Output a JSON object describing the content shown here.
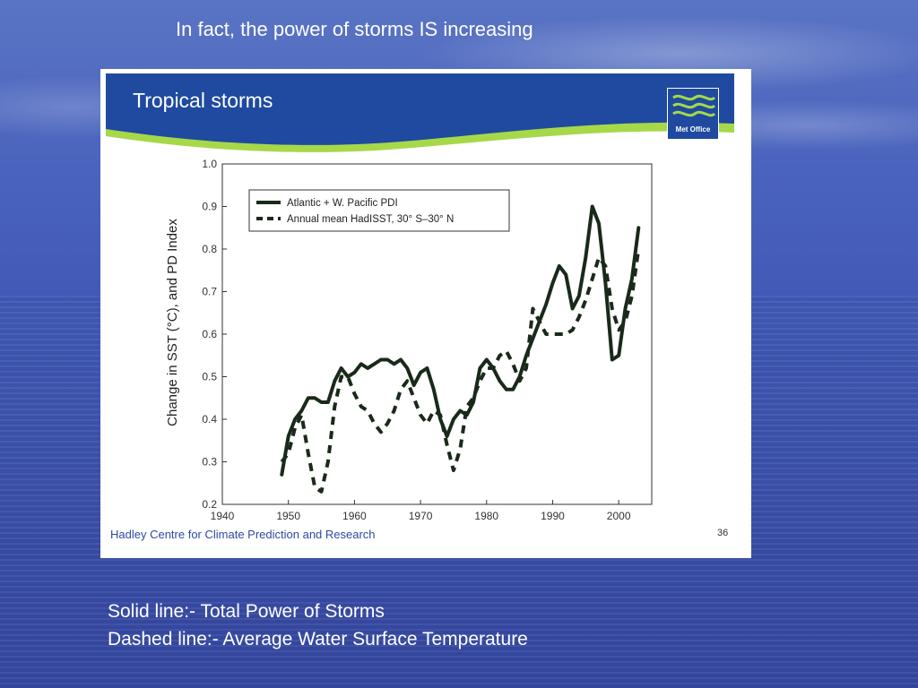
{
  "slide": {
    "title": "In fact, the power of storms IS increasing",
    "captions": [
      "Solid line:- Total Power of Storms",
      "Dashed line:- Average Water Surface Temperature"
    ],
    "background_color": "#4a63bd"
  },
  "figure": {
    "banner_title": "Tropical storms",
    "logo_text": "Met Office",
    "footer": "Hadley Centre for Climate Prediction and Research",
    "page_number": "36",
    "banner_color": "#1f4aa0",
    "accent_color": "#a6d84a"
  },
  "chart_data": {
    "type": "line",
    "title": "Tropical storms",
    "xlabel": "",
    "ylabel": "Change in SST (°C), and PD Index",
    "xlim": [
      1940,
      2005
    ],
    "ylim": [
      0.2,
      1.0
    ],
    "x_ticks": [
      1940,
      1950,
      1960,
      1970,
      1980,
      1990,
      2000
    ],
    "y_ticks": [
      "0.2",
      "0.3",
      "0.4",
      "0.5",
      "0.6",
      "0.7",
      "0.8",
      "0.9",
      "1.0"
    ],
    "grid": false,
    "legend": "top-left",
    "series": [
      {
        "name": "Atlantic + W. Pacific PDI",
        "style": "solid",
        "x": [
          1949,
          1950,
          1951,
          1952,
          1953,
          1954,
          1955,
          1956,
          1957,
          1958,
          1959,
          1960,
          1961,
          1962,
          1963,
          1964,
          1965,
          1966,
          1967,
          1968,
          1969,
          1970,
          1971,
          1972,
          1973,
          1974,
          1975,
          1976,
          1977,
          1978,
          1979,
          1980,
          1981,
          1982,
          1983,
          1984,
          1985,
          1986,
          1987,
          1988,
          1989,
          1990,
          1991,
          1992,
          1993,
          1994,
          1995,
          1996,
          1997,
          1998,
          1999,
          2000,
          2001,
          2002,
          2003
        ],
        "values": [
          0.27,
          0.36,
          0.4,
          0.42,
          0.45,
          0.45,
          0.44,
          0.44,
          0.49,
          0.52,
          0.5,
          0.51,
          0.53,
          0.52,
          0.53,
          0.54,
          0.54,
          0.53,
          0.54,
          0.52,
          0.48,
          0.51,
          0.52,
          0.47,
          0.4,
          0.36,
          0.4,
          0.42,
          0.41,
          0.44,
          0.52,
          0.54,
          0.52,
          0.49,
          0.47,
          0.47,
          0.5,
          0.55,
          0.59,
          0.63,
          0.67,
          0.72,
          0.76,
          0.74,
          0.66,
          0.69,
          0.78,
          0.9,
          0.86,
          0.72,
          0.54,
          0.55,
          0.66,
          0.73,
          0.85
        ]
      },
      {
        "name": "Annual mean HadISST, 30° S–30° N",
        "style": "dashed",
        "x": [
          1949,
          1950,
          1951,
          1952,
          1953,
          1954,
          1955,
          1956,
          1957,
          1958,
          1959,
          1960,
          1961,
          1962,
          1963,
          1964,
          1965,
          1966,
          1967,
          1968,
          1969,
          1970,
          1971,
          1972,
          1973,
          1974,
          1975,
          1976,
          1977,
          1978,
          1979,
          1980,
          1981,
          1982,
          1983,
          1984,
          1985,
          1986,
          1987,
          1988,
          1989,
          1990,
          1991,
          1992,
          1993,
          1994,
          1995,
          1996,
          1997,
          1998,
          1999,
          2000,
          2001,
          2002,
          2003
        ],
        "values": [
          0.3,
          0.32,
          0.38,
          0.41,
          0.32,
          0.24,
          0.23,
          0.3,
          0.43,
          0.5,
          0.5,
          0.46,
          0.43,
          0.42,
          0.39,
          0.37,
          0.39,
          0.42,
          0.47,
          0.49,
          0.45,
          0.41,
          0.39,
          0.42,
          0.41,
          0.34,
          0.28,
          0.33,
          0.43,
          0.45,
          0.49,
          0.52,
          0.52,
          0.55,
          0.56,
          0.53,
          0.49,
          0.52,
          0.66,
          0.63,
          0.6,
          0.6,
          0.6,
          0.6,
          0.61,
          0.64,
          0.68,
          0.73,
          0.78,
          0.76,
          0.66,
          0.61,
          0.63,
          0.69,
          0.8
        ]
      }
    ]
  }
}
